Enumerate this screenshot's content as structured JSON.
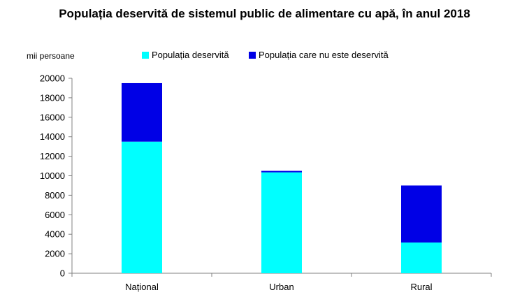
{
  "chart_data": {
    "type": "bar",
    "stacked": true,
    "title": "Populația deservită de sistemul public de alimentare cu apă, în anul 2018",
    "ylabel": "mii persoane",
    "xlabel": "",
    "categories": [
      "Național",
      "Urban",
      "Rural"
    ],
    "series": [
      {
        "name": "Populația deservită",
        "color": "#00ffff",
        "values": [
          13500,
          10350,
          3150
        ]
      },
      {
        "name": "Populația care nu este deservită",
        "color": "#0000e6",
        "values": [
          6000,
          150,
          5850
        ]
      }
    ],
    "ylim": [
      0,
      20000
    ],
    "yticks": [
      0,
      2000,
      4000,
      6000,
      8000,
      10000,
      12000,
      14000,
      16000,
      18000,
      20000
    ],
    "grid": false,
    "legend_position": "top"
  }
}
